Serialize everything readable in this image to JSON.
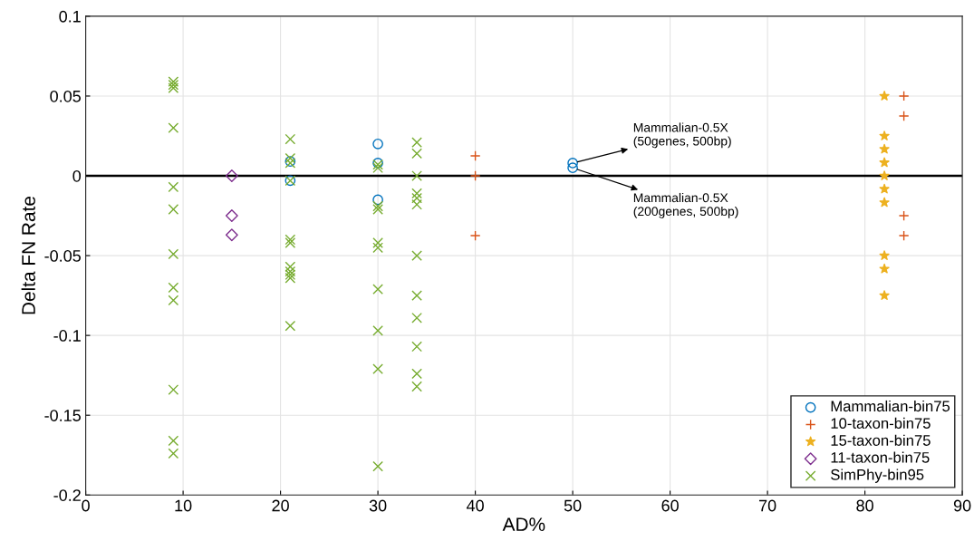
{
  "chart_data": {
    "type": "scatter",
    "xlabel": "AD%",
    "ylabel": "Delta FN Rate",
    "xlim": [
      0,
      90
    ],
    "xticks": [
      0,
      10,
      20,
      30,
      40,
      50,
      60,
      70,
      80,
      90
    ],
    "ylim": [
      -0.2,
      0.1
    ],
    "yticks": [
      -0.2,
      -0.15,
      -0.1,
      -0.05,
      0,
      0.05,
      0.1
    ],
    "grid": true,
    "legend": "bottom right",
    "ref_lines": [
      {
        "axis": "y",
        "value": 0,
        "color": "#000000",
        "line_style": "solid"
      }
    ],
    "series": [
      {
        "name": "Mammalian-bin75",
        "color": "#0072bd",
        "marker": "circle",
        "x": [
          21,
          21,
          30,
          30,
          30,
          50,
          50
        ],
        "values": [
          0.009,
          -0.003,
          0.02,
          0.008,
          -0.015,
          0.008,
          0.005
        ]
      },
      {
        "name": "10-taxon-bin75",
        "color": "#d95319",
        "marker": "plus",
        "x": [
          40,
          40,
          40,
          84,
          84,
          84,
          84
        ],
        "values": [
          0.0125,
          0,
          -0.0375,
          0.05,
          0.0375,
          -0.025,
          -0.0375
        ]
      },
      {
        "name": "15-taxon-bin75",
        "color": "#edb120",
        "marker": "star",
        "x": [
          82,
          82,
          82,
          82,
          82,
          82,
          82,
          82,
          82,
          82
        ],
        "values": [
          0.05,
          0.025,
          0.0167,
          0.0083,
          0,
          -0.0083,
          -0.0167,
          -0.05,
          -0.0583,
          -0.075
        ]
      },
      {
        "name": "11-taxon-bin75",
        "color": "#7e2f8e",
        "marker": "diamond",
        "x": [
          15,
          15,
          15
        ],
        "values": [
          0,
          -0.025,
          -0.037
        ]
      },
      {
        "name": "SimPhy-bin95",
        "color": "#77ac30",
        "marker": "cross",
        "x": [
          9,
          9,
          9,
          9,
          9,
          9,
          9,
          9,
          9,
          9,
          9,
          9,
          21,
          21,
          21,
          21,
          21,
          21,
          21,
          21,
          21,
          21,
          21,
          30,
          30,
          30,
          30,
          30,
          30,
          30,
          30,
          30,
          30,
          34,
          34,
          34,
          34,
          34,
          34,
          34,
          34,
          34,
          34,
          34,
          34
        ],
        "values": [
          0.059,
          0.057,
          0.055,
          0.03,
          -0.007,
          -0.021,
          -0.049,
          -0.07,
          -0.078,
          -0.134,
          -0.166,
          -0.174,
          0.023,
          0.011,
          0.008,
          -0.003,
          -0.04,
          -0.042,
          -0.057,
          -0.06,
          -0.062,
          -0.064,
          -0.094,
          0.007,
          0.005,
          -0.019,
          -0.021,
          -0.042,
          -0.045,
          -0.071,
          -0.097,
          -0.121,
          -0.182,
          0.021,
          0.014,
          0,
          -0.011,
          -0.014,
          -0.018,
          -0.05,
          -0.075,
          -0.089,
          -0.107,
          -0.124,
          -0.132
        ]
      }
    ],
    "annotations": [
      {
        "text": "Mammalian-0.5X\n(50genes, 500bp)",
        "x": 50,
        "y": 0.008
      },
      {
        "text": "Mammalian-0.5X\n(200genes, 500bp)",
        "x": 50,
        "y": 0.005
      }
    ]
  }
}
